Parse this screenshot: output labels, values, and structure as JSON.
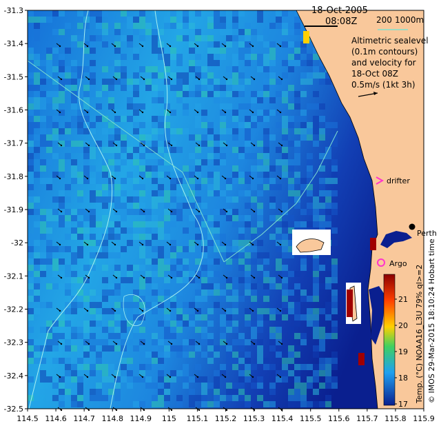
{
  "header": {
    "date": "18-Oct-2005",
    "time": "08:08Z",
    "depth_label_200": "200",
    "depth_label_1000": "1000m"
  },
  "legend_text": {
    "line1": "Altimetric sealevel",
    "line2": "(0.1m contours)",
    "line3": "and velocity for",
    "line4": "18-Oct 08Z",
    "line5": "0.5m/s (1kt 3h)"
  },
  "labels": {
    "drifter": "drifter",
    "argo": "Argo",
    "perth": "Perth"
  },
  "colorbar": {
    "ticks": [
      "21",
      "20",
      "19",
      "18",
      "17"
    ],
    "caption": "Temp. (°C) NOAA16_L3U 79% ql>=2",
    "credit": "© IMOS 29-Mar-2015 18:10:24 Hobart time"
  },
  "axes": {
    "x_ticks": [
      "114.5",
      "114.6",
      "114.7",
      "114.8",
      "114.9",
      "115",
      "115.1",
      "115.2",
      "115.3",
      "115.4",
      "115.5",
      "115.6",
      "115.7",
      "115.8",
      "115.9"
    ],
    "y_ticks": [
      "-31.3",
      "-31.4",
      "-31.5",
      "-31.6",
      "-31.7",
      "-31.8",
      "-31.9",
      "-32",
      "-32.1",
      "-32.2",
      "-32.3",
      "-32.4",
      "-32.5"
    ]
  },
  "colors": {
    "land": "#f9c89b",
    "sst_low": "#0a1f8f",
    "sst_mid": "#1a8fe0",
    "sst_high": "#2fc7a0",
    "contour_200": "#a8f0f0",
    "contour_1000": "#7fe0d0",
    "drifter": "#ff33cc",
    "argo": "#ff33cc"
  },
  "icons": {
    "velocity_arrow": "arrow-icon",
    "drifter": "chevron-right-icon",
    "argo": "circle-icon",
    "perth": "dot-icon"
  }
}
